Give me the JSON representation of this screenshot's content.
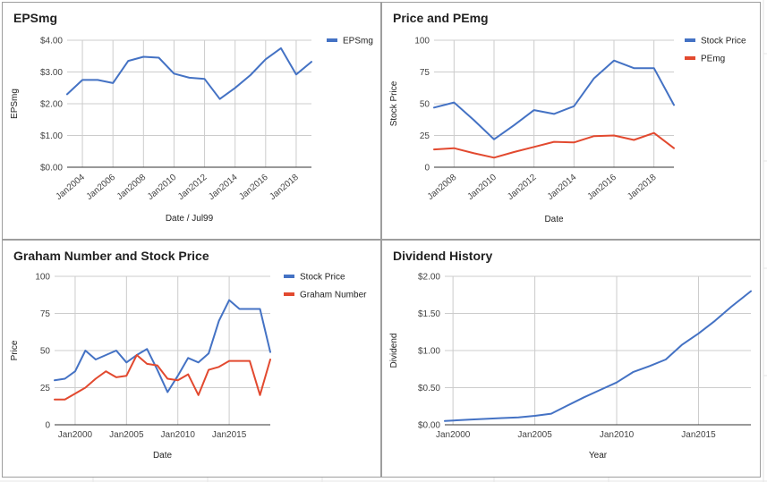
{
  "colors": {
    "blue": "#4472c4",
    "red": "#e2492f"
  },
  "chart_data": [
    {
      "type": "line",
      "title": "EPSmg",
      "xlabel": "Date / Jul99",
      "ylabel": "EPSmg",
      "x_ticks": [
        "Jan2004",
        "Jan2006",
        "Jan2008",
        "Jan2010",
        "Jan2012",
        "Jan2014",
        "Jan2016",
        "Jan2018"
      ],
      "y_ticks": [
        "$0.00",
        "$1.00",
        "$2.00",
        "$3.00",
        "$4.00"
      ],
      "xlim": [
        2003,
        2019
      ],
      "ylim": [
        0,
        4
      ],
      "grid": true,
      "legend": "right",
      "series": [
        {
          "name": "EPSmg",
          "color": "#4472c4",
          "x": [
            2003,
            2004,
            2005,
            2006,
            2007,
            2008,
            2009,
            2010,
            2011,
            2012,
            2013,
            2014,
            2015,
            2016,
            2017,
            2018,
            2019
          ],
          "y": [
            2.3,
            2.75,
            2.75,
            2.65,
            3.35,
            3.48,
            3.45,
            2.95,
            2.82,
            2.78,
            2.15,
            2.5,
            2.9,
            3.4,
            3.75,
            2.92,
            3.32
          ]
        }
      ]
    },
    {
      "type": "line",
      "title": "Price and PEmg",
      "xlabel": "Date",
      "ylabel": "Stock Price",
      "x_ticks": [
        "Jan2008",
        "Jan2010",
        "Jan2012",
        "Jan2014",
        "Jan2016",
        "Jan2018"
      ],
      "y_ticks": [
        "0",
        "25",
        "50",
        "75",
        "100"
      ],
      "xlim": [
        2007,
        2019
      ],
      "ylim": [
        0,
        100
      ],
      "grid": true,
      "legend": "right",
      "series": [
        {
          "name": "Stock Price",
          "color": "#4472c4",
          "x": [
            2007,
            2008,
            2009,
            2010,
            2011,
            2012,
            2013,
            2014,
            2015,
            2016,
            2017,
            2018,
            2019
          ],
          "y": [
            47,
            51,
            37,
            22,
            33,
            45,
            42,
            48,
            70,
            84,
            78,
            78,
            49
          ]
        },
        {
          "name": "PEmg",
          "color": "#e2492f",
          "x": [
            2007,
            2008,
            2009,
            2010,
            2011,
            2012,
            2013,
            2014,
            2015,
            2016,
            2017,
            2018,
            2019
          ],
          "y": [
            14,
            15,
            11,
            7.5,
            12,
            16,
            20,
            19.5,
            24.5,
            25,
            21.5,
            27,
            15
          ]
        }
      ]
    },
    {
      "type": "line",
      "title": "Graham Number and Stock Price",
      "xlabel": "Date",
      "ylabel": "Price",
      "x_ticks": [
        "Jan2000",
        "Jan2005",
        "Jan2010",
        "Jan2015"
      ],
      "y_ticks": [
        "0",
        "25",
        "50",
        "75",
        "100"
      ],
      "xlim": [
        1998,
        2019
      ],
      "ylim": [
        0,
        100
      ],
      "grid": true,
      "legend": "right",
      "series": [
        {
          "name": "Stock Price",
          "color": "#4472c4",
          "x": [
            1998,
            1999,
            2000,
            2001,
            2002,
            2003,
            2004,
            2005,
            2006,
            2007,
            2008,
            2009,
            2010,
            2011,
            2012,
            2013,
            2014,
            2015,
            2016,
            2017,
            2018,
            2019
          ],
          "y": [
            30,
            31,
            36,
            50,
            44,
            47,
            50,
            42,
            47,
            51,
            37,
            22,
            33,
            45,
            42,
            48,
            70,
            84,
            78,
            78,
            78,
            49
          ]
        },
        {
          "name": "Graham Number",
          "color": "#e2492f",
          "x": [
            1998,
            1999,
            2000,
            2001,
            2002,
            2003,
            2004,
            2005,
            2006,
            2007,
            2008,
            2009,
            2010,
            2011,
            2012,
            2013,
            2014,
            2015,
            2016,
            2017,
            2018,
            2019
          ],
          "y": [
            17,
            17,
            21,
            25,
            31,
            36,
            32,
            33,
            47,
            41,
            40,
            31,
            30,
            34,
            20,
            37,
            39,
            43,
            43,
            43,
            20,
            44
          ]
        }
      ]
    },
    {
      "type": "line",
      "title": "Dividend History",
      "xlabel": "Year",
      "ylabel": "Dividend",
      "x_ticks": [
        "Jan2000",
        "Jan2005",
        "Jan2010",
        "Jan2015"
      ],
      "y_ticks": [
        "$0.00",
        "$0.50",
        "$1.00",
        "$1.50",
        "$2.00"
      ],
      "xlim": [
        1999.5,
        2018.2
      ],
      "ylim": [
        0,
        2
      ],
      "grid": true,
      "legend": "none",
      "series": [
        {
          "color": "#4472c4",
          "x": [
            1999.5,
            2001,
            2002,
            2003,
            2004,
            2005,
            2006,
            2007,
            2008,
            2009,
            2010,
            2011,
            2012,
            2013,
            2014,
            2015,
            2016,
            2017,
            2018.2
          ],
          "y": [
            0.05,
            0.07,
            0.08,
            0.09,
            0.1,
            0.12,
            0.15,
            0.26,
            0.37,
            0.47,
            0.57,
            0.71,
            0.79,
            0.88,
            1.08,
            1.23,
            1.4,
            1.59,
            1.8
          ]
        }
      ]
    }
  ]
}
